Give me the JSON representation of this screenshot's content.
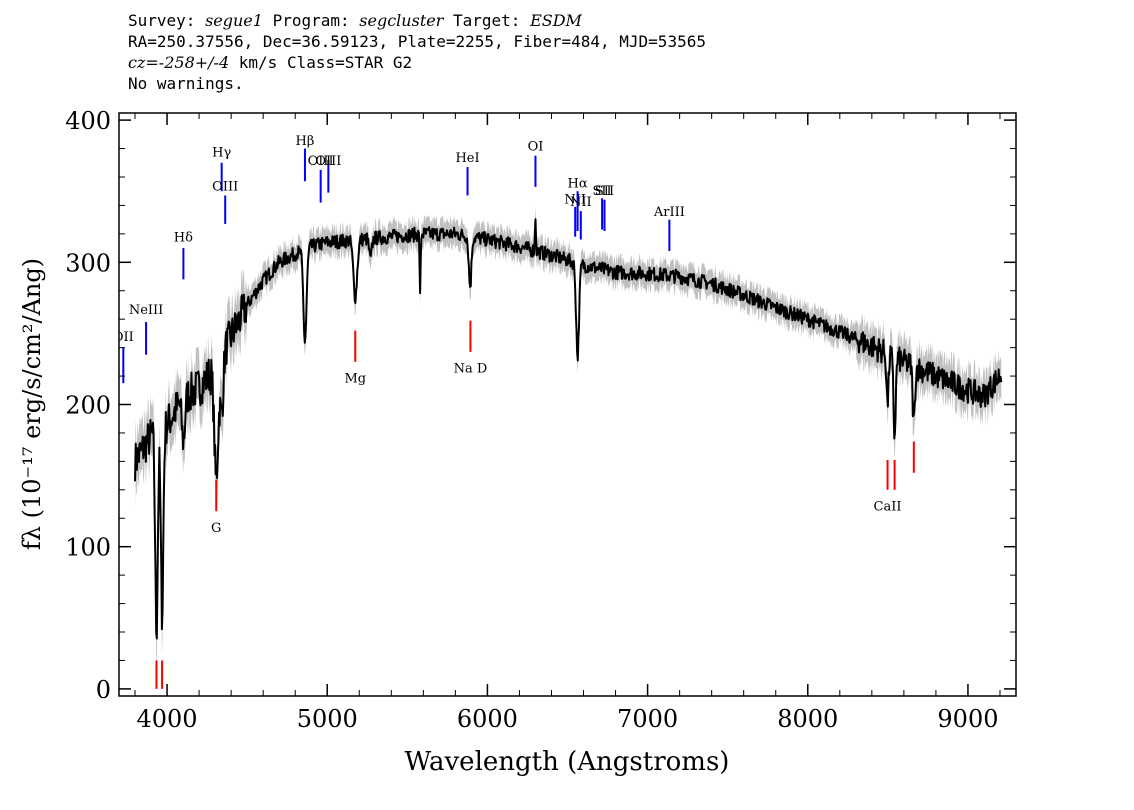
{
  "header": {
    "survey_label": "Survey:",
    "survey_value": "segue1",
    "program_label": "Program:",
    "program_value": "segcluster",
    "target_label": "Target:",
    "target_value": "ESDM",
    "coords_line": "RA=250.37556, Dec=36.59123, Plate=2255, Fiber=484, MJD=53565",
    "cz_label": "cz=",
    "cz_value": "-258+/-4",
    "cz_unit": "km/s",
    "class_text": "Class=STAR G2",
    "warnings": "No warnings."
  },
  "chart_data": {
    "type": "line",
    "xlabel": "Wavelength (Angstroms)",
    "ylabel": "fλ (10⁻¹⁷ erg/s/cm²/Ang)",
    "xlim": [
      3700,
      9300
    ],
    "ylim": [
      -5,
      405
    ],
    "x_ticks": [
      4000,
      5000,
      6000,
      7000,
      8000,
      9000
    ],
    "y_ticks": [
      0,
      100,
      200,
      300,
      400
    ],
    "colors": {
      "flux": "#000000",
      "error_band": "#c0c0c0",
      "emission": "#0000ff",
      "absorption": "#ff0000"
    },
    "continuum_anchors": [
      [
        3800,
        160
      ],
      [
        3900,
        178
      ],
      [
        4000,
        186
      ],
      [
        4100,
        205
      ],
      [
        4200,
        212
      ],
      [
        4300,
        226
      ],
      [
        4400,
        248
      ],
      [
        4500,
        270
      ],
      [
        4600,
        287
      ],
      [
        4700,
        300
      ],
      [
        4800,
        306
      ],
      [
        4900,
        311
      ],
      [
        5000,
        314
      ],
      [
        5200,
        316
      ],
      [
        5400,
        318
      ],
      [
        5600,
        320
      ],
      [
        5800,
        320
      ],
      [
        6000,
        316
      ],
      [
        6200,
        311
      ],
      [
        6400,
        305
      ],
      [
        6600,
        298
      ],
      [
        6800,
        293
      ],
      [
        7000,
        292
      ],
      [
        7200,
        290
      ],
      [
        7400,
        285
      ],
      [
        7600,
        277
      ],
      [
        7800,
        268
      ],
      [
        8000,
        260
      ],
      [
        8200,
        251
      ],
      [
        8400,
        241
      ],
      [
        8600,
        230
      ],
      [
        8800,
        220
      ],
      [
        9000,
        210
      ],
      [
        9100,
        206
      ],
      [
        9210,
        222
      ]
    ],
    "absorption_features": [
      {
        "wave": 3934,
        "depth": 140,
        "width": 8
      },
      {
        "wave": 3969,
        "depth": 130,
        "width": 8
      },
      {
        "wave": 4102,
        "depth": 30,
        "width": 10
      },
      {
        "wave": 4307,
        "depth": 80,
        "width": 12
      },
      {
        "wave": 4341,
        "depth": 40,
        "width": 10
      },
      {
        "wave": 4861,
        "depth": 65,
        "width": 10
      },
      {
        "wave": 5175,
        "depth": 40,
        "width": 12
      },
      {
        "wave": 5270,
        "depth": 15,
        "width": 8
      },
      {
        "wave": 5580,
        "depth": 45,
        "width": 3
      },
      {
        "wave": 5892,
        "depth": 35,
        "width": 8
      },
      {
        "wave": 6563,
        "depth": 65,
        "width": 9
      },
      {
        "wave": 8498,
        "depth": 35,
        "width": 6
      },
      {
        "wave": 8542,
        "depth": 55,
        "width": 7
      },
      {
        "wave": 8662,
        "depth": 40,
        "width": 7
      }
    ],
    "emission_features": [
      {
        "wave": 6300,
        "height": 25,
        "width": 3
      }
    ],
    "line_markers": [
      {
        "label": "OII",
        "kind": "emission",
        "wave": 3727,
        "y0": 215,
        "y1": 240,
        "label_y": 248
      },
      {
        "label": "NeIII",
        "kind": "emission",
        "wave": 3869,
        "y0": 235,
        "y1": 258,
        "label_y": 267
      },
      {
        "label": "Hδ",
        "kind": "emission",
        "wave": 4102,
        "y0": 288,
        "y1": 310,
        "label_y": 318
      },
      {
        "label": "Hγ",
        "kind": "emission",
        "wave": 4341,
        "y0": 350,
        "y1": 370,
        "label_y": 378
      },
      {
        "label": "OIII",
        "kind": "emission",
        "wave": 4363,
        "y0": 327,
        "y1": 347,
        "label_y": 354
      },
      {
        "label": "Hβ",
        "kind": "emission",
        "wave": 4861,
        "y0": 357,
        "y1": 380,
        "label_y": 386
      },
      {
        "label": "OIII",
        "kind": "emission",
        "wave": 4959,
        "y0": 342,
        "y1": 365,
        "label_y": 372
      },
      {
        "label": "OIII",
        "kind": "emission",
        "wave": 5007,
        "y0": 349,
        "y1": 372,
        "label_y": 372
      },
      {
        "label": "HeI",
        "kind": "emission",
        "wave": 5876,
        "y0": 347,
        "y1": 367,
        "label_y": 374
      },
      {
        "label": "OI",
        "kind": "emission",
        "wave": 6300,
        "y0": 353,
        "y1": 375,
        "label_y": 382
      },
      {
        "label": "NII",
        "kind": "emission",
        "wave": 6548,
        "y0": 318,
        "y1": 339,
        "label_y": 345
      },
      {
        "label": "Hα",
        "kind": "emission",
        "wave": 6563,
        "y0": 322,
        "y1": 350,
        "label_y": 356
      },
      {
        "label": "NII",
        "kind": "emission",
        "wave": 6583,
        "y0": 316,
        "y1": 336,
        "label_y": 343
      },
      {
        "label": "SII",
        "kind": "emission",
        "wave": 6716,
        "y0": 323,
        "y1": 345,
        "label_y": 351
      },
      {
        "label": "SII",
        "kind": "emission",
        "wave": 6731,
        "y0": 322,
        "y1": 344,
        "label_y": 351
      },
      {
        "label": "ArIII",
        "kind": "emission",
        "wave": 7136,
        "y0": 308,
        "y1": 330,
        "label_y": 336
      },
      {
        "label": "CaII",
        "kind": "absorption",
        "wave": 3934,
        "y0": 0,
        "y1": 20,
        "label_y": -99
      },
      {
        "label": "CaII",
        "kind": "absorption",
        "wave": 3969,
        "y0": 0,
        "y1": 20,
        "label_y": -99
      },
      {
        "label": "G",
        "kind": "absorption",
        "wave": 4307,
        "y0": 125,
        "y1": 147,
        "label_y": 114
      },
      {
        "label": "Mg",
        "kind": "absorption",
        "wave": 5175,
        "y0": 230,
        "y1": 252,
        "label_y": 219
      },
      {
        "label": "Na D",
        "kind": "absorption",
        "wave": 5894,
        "y0": 237,
        "y1": 259,
        "label_y": 226
      },
      {
        "label": "CaII",
        "kind": "absorption",
        "wave": 8498,
        "y0": 140,
        "y1": 161,
        "label_y": 129
      },
      {
        "label": "CaII",
        "kind": "absorption",
        "wave": 8542,
        "y0": 140,
        "y1": 161,
        "label_y": -99
      },
      {
        "label": "CaII",
        "kind": "absorption",
        "wave": 8662,
        "y0": 152,
        "y1": 174,
        "label_y": -99
      }
    ]
  }
}
